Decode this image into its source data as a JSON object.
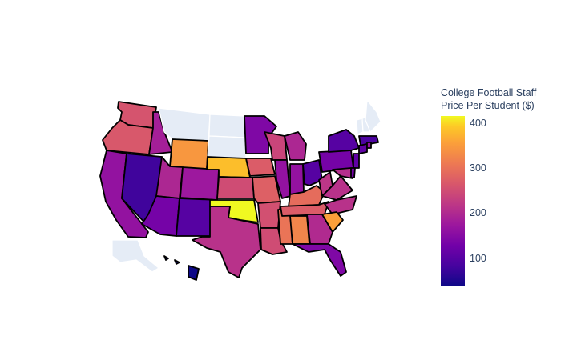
{
  "colorbar": {
    "title_line1": "College Football Staff",
    "title_line2": "Price Per Student ($)",
    "ticks": [
      "400",
      "300",
      "200",
      "100"
    ],
    "range": [
      32,
      414
    ],
    "colorscale": [
      "#0d0887",
      "#46039f",
      "#7201a8",
      "#9c179e",
      "#bd3786",
      "#d8576b",
      "#ed7953",
      "#fb9f3a",
      "#fdca26",
      "#f0f921"
    ]
  },
  "states": {
    "WA": 240,
    "OR": 245,
    "CA": 150,
    "NV": 70,
    "ID": 170,
    "MT": null,
    "WY": 320,
    "UT": 180,
    "AZ": 120,
    "CO": 160,
    "NM": 90,
    "ND": null,
    "SD": null,
    "NE": 360,
    "KS": 230,
    "OK": 414,
    "TX": 195,
    "MN": 130,
    "IA": 250,
    "MO": 255,
    "AR": 235,
    "LA": 230,
    "WI": 220,
    "IL": 150,
    "MS": 280,
    "MI": 180,
    "IN": 150,
    "KY": 270,
    "TN": 250,
    "AL": 300,
    "GA": 185,
    "FL": 130,
    "OH": 90,
    "WV": 200,
    "VA": 195,
    "NC": 195,
    "SC": 330,
    "PA": 120,
    "NY": 90,
    "VT": null,
    "NH": null,
    "ME": null,
    "MA": 80,
    "CT": 100,
    "NJ": 100,
    "MD": 190,
    "DE": 120,
    "RI": 150,
    "AK": null,
    "HI": 32
  }
}
